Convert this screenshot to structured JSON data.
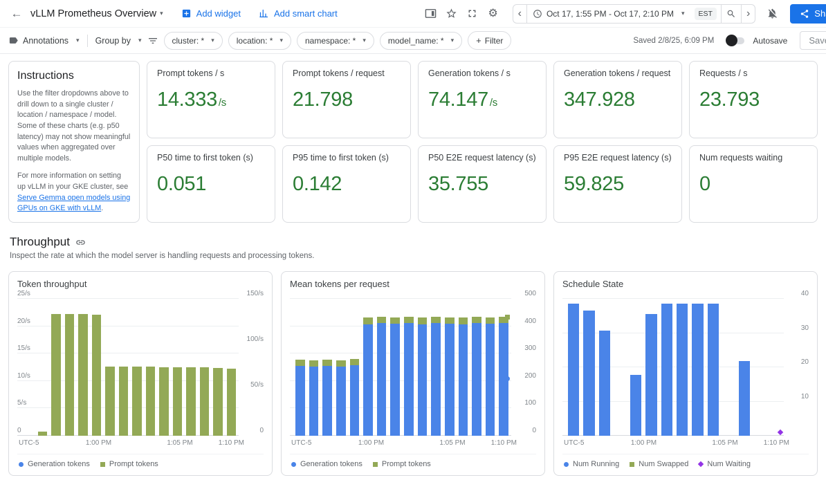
{
  "icons": {
    "back_arrow": "←",
    "caret": "▾",
    "plus": "+",
    "gear": "⚙",
    "chev_left": "‹",
    "chev_right": "›"
  },
  "colors": {
    "accent_blue": "#1a73e8",
    "value_green": "#2b7d34",
    "bar_green": "#93a956",
    "bar_blue": "#4a84e8",
    "purple": "#9334e6"
  },
  "header": {
    "title": "vLLM Prometheus Overview",
    "add_widget": "Add widget",
    "add_smart_chart": "Add smart chart",
    "time_range": "Oct 17, 1:55 PM - Oct 17, 2:10 PM",
    "timezone": "EST",
    "share": "Share"
  },
  "toolbar": {
    "annotations": "Annotations",
    "group_by": "Group by",
    "filters": [
      "cluster: *",
      "location: *",
      "namespace: *",
      "model_name: *"
    ],
    "add_filter_label": "Filter",
    "saved": "Saved 2/8/25, 6:09 PM",
    "autosave": "Autosave",
    "save": "Save"
  },
  "instructions": {
    "title": "Instructions",
    "para1": "Use the filter dropdowns above to drill down to a single cluster / location / namespace / model. Some of these charts (e.g. p50 latency) may not show meaningful values when aggregated over multiple models.",
    "para2_prefix": "For more information on setting up vLLM in your GKE cluster, see ",
    "para2_link": "Serve Gemma open models using GPUs on GKE with vLLM",
    "para2_suffix": "."
  },
  "scorecards": [
    {
      "label": "Prompt tokens / s",
      "value": "14.333",
      "suffix": "/s"
    },
    {
      "label": "Prompt tokens / request",
      "value": "21.798",
      "suffix": ""
    },
    {
      "label": "Generation tokens / s",
      "value": "74.147",
      "suffix": "/s"
    },
    {
      "label": "Generation tokens / request",
      "value": "347.928",
      "suffix": ""
    },
    {
      "label": "Requests / s",
      "value": "23.793",
      "suffix": ""
    },
    {
      "label": "P50 time to first token (s)",
      "value": "0.051",
      "suffix": ""
    },
    {
      "label": "P95 time to first token (s)",
      "value": "0.142",
      "suffix": ""
    },
    {
      "label": "P50 E2E request latency (s)",
      "value": "35.755",
      "suffix": ""
    },
    {
      "label": "P95 E2E request latency (s)",
      "value": "59.825",
      "suffix": ""
    },
    {
      "label": "Num requests waiting",
      "value": "0",
      "suffix": ""
    }
  ],
  "section": {
    "title": "Throughput",
    "subtitle": "Inspect the rate at which the model server is handling requests and processing tokens."
  },
  "chart_data": [
    {
      "type": "bar",
      "title": "Token throughput",
      "x_ticks": [
        "UTC-5",
        "1:00 PM",
        "1:05 PM",
        "1:10 PM"
      ],
      "grid_max": 25,
      "left_axis": {
        "max": 25,
        "suffix": "/s",
        "ticks": [
          25,
          20,
          15,
          10,
          5,
          0
        ]
      },
      "right_axis": {
        "max": 150,
        "suffix": "/s",
        "ticks": [
          150,
          100,
          50,
          0
        ]
      },
      "series": [
        {
          "name": "Prompt tokens",
          "color": "#93a956",
          "values": [
            0.8,
            22.4,
            22.5,
            22.4,
            22.3,
            12.8,
            12.7,
            12.7,
            12.7,
            12.6,
            12.6,
            12.6,
            12.6,
            12.5,
            12.4
          ]
        }
      ],
      "legend": [
        {
          "label": "Generation tokens",
          "shape": "circle",
          "color": "#4a84e8"
        },
        {
          "label": "Prompt tokens",
          "shape": "square",
          "color": "#93a956"
        }
      ]
    },
    {
      "type": "stacked-bar",
      "title": "Mean tokens per request",
      "x_ticks": [
        "UTC-5",
        "1:00 PM",
        "1:05 PM",
        "1:10 PM"
      ],
      "grid_max": 500,
      "right_axis": {
        "max": 500,
        "suffix": "",
        "ticks": [
          500,
          400,
          300,
          200,
          100,
          0
        ]
      },
      "series": [
        {
          "name": "Generation tokens",
          "color": "#4a84e8",
          "values": [
            258,
            255,
            258,
            256,
            260,
            412,
            415,
            413,
            415,
            412,
            415,
            413,
            412,
            415,
            413,
            415
          ]
        },
        {
          "name": "Prompt tokens",
          "color": "#93a956",
          "values": [
            22,
            22,
            22,
            22,
            23,
            24,
            24,
            24,
            24,
            24,
            24,
            24,
            24,
            24,
            24,
            24
          ]
        }
      ],
      "end_markers": [
        {
          "shape": "circle",
          "color": "#4a84e8",
          "value": 208
        },
        {
          "shape": "square",
          "color": "#93a956",
          "value": 432
        }
      ],
      "legend": [
        {
          "label": "Generation tokens",
          "shape": "circle",
          "color": "#4a84e8"
        },
        {
          "label": "Prompt tokens",
          "shape": "square",
          "color": "#93a956"
        }
      ]
    },
    {
      "type": "bar",
      "title": "Schedule State",
      "x_ticks": [
        "UTC-5",
        "1:00 PM",
        "1:05 PM",
        "1:10 PM"
      ],
      "grid_max": 40,
      "right_axis": {
        "max": 40,
        "suffix": "",
        "ticks": [
          40,
          30,
          20,
          10
        ]
      },
      "series": [
        {
          "name": "Num Running",
          "color": "#4a84e8",
          "values": [
            39,
            37,
            31,
            0,
            18,
            36,
            39,
            39,
            39,
            39,
            0,
            22,
            0,
            0
          ]
        }
      ],
      "end_markers": [
        {
          "shape": "diamond",
          "color": "#9334e6",
          "value": 1
        }
      ],
      "legend": [
        {
          "label": "Num Running",
          "shape": "circle",
          "color": "#4a84e8"
        },
        {
          "label": "Num Swapped",
          "shape": "square",
          "color": "#93a956"
        },
        {
          "label": "Num Waiting",
          "shape": "diamond",
          "color": "#9334e6"
        }
      ]
    }
  ]
}
